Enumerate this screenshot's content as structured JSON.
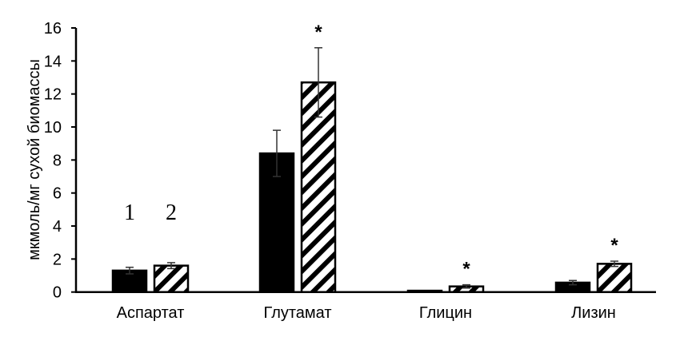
{
  "chart_data": {
    "type": "bar",
    "categories": [
      "Аспартат",
      "Глутамат",
      "Глицин",
      "Лизин"
    ],
    "series": [
      {
        "name": "1",
        "pattern": "solid",
        "values": [
          1.3,
          8.4,
          0.08,
          0.57
        ],
        "errors": [
          0.2,
          1.4,
          0.0,
          0.13
        ]
      },
      {
        "name": "2",
        "pattern": "hatched",
        "values": [
          1.6,
          12.7,
          0.34,
          1.71
        ],
        "errors": [
          0.18,
          2.1,
          0.1,
          0.16
        ]
      }
    ],
    "significance": [
      [
        false,
        false,
        false,
        false
      ],
      [
        false,
        true,
        true,
        true
      ]
    ],
    "significance_marker": "*",
    "ylabel": "мкмоль/мг сухой биомассы",
    "xlabel": "",
    "ylim": [
      0,
      16
    ],
    "yticks": [
      0,
      2,
      4,
      6,
      8,
      10,
      12,
      14,
      16
    ],
    "grid": false,
    "colors": {
      "bar": "#000000",
      "background": "#ffffff"
    }
  }
}
